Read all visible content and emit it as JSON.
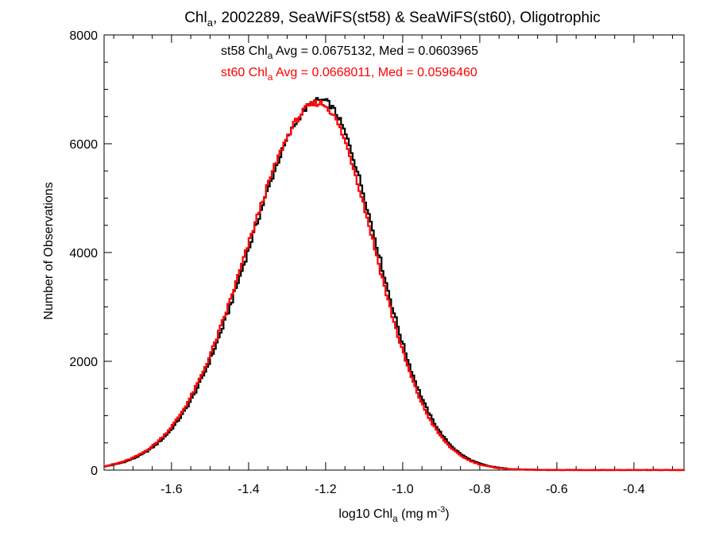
{
  "chart_data": {
    "type": "line",
    "title": {
      "main": "Chl",
      "sub": "a",
      "rest": ", 2002289, SeaWiFS(st58) & SeaWiFS(st60), Oligotrophic"
    },
    "xlabel": {
      "main": "log10 Chl",
      "sub": "a",
      "mid": " (mg m",
      "sup": "-3",
      "end": ")"
    },
    "ylabel": "Number of Observations",
    "xlim": [
      -1.775,
      -0.27
    ],
    "ylim": [
      0,
      8000
    ],
    "xticks": [
      -1.6,
      -1.4,
      -1.2,
      -1.0,
      -0.8,
      -0.6,
      -0.4
    ],
    "xtick_labels": [
      "-1.6",
      "-1.4",
      "-1.2",
      "-1.0",
      "-0.8",
      "-0.6",
      "-0.4"
    ],
    "yticks": [
      0,
      2000,
      4000,
      6000,
      8000
    ],
    "ytick_labels": [
      "0",
      "2000",
      "4000",
      "6000",
      "8000"
    ],
    "grid": false,
    "annotations": [
      {
        "prefix": "st58 Chl",
        "sub": "a",
        "suffix": " Avg = 0.0675132, Med = 0.0603965",
        "color": "#000000"
      },
      {
        "prefix": "st60 Chl",
        "sub": "a",
        "suffix": " Avg = 0.0668011, Med = 0.0596460",
        "color": "#ff0000"
      }
    ],
    "series": [
      {
        "color": "#000000",
        "mu": -1.212,
        "sigma_left": 0.185,
        "sigma_right": 0.145,
        "peak": 6800
      },
      {
        "color": "#ff0000",
        "mu": -1.218,
        "sigma_left": 0.185,
        "sigma_right": 0.145,
        "peak": 6750
      }
    ]
  }
}
